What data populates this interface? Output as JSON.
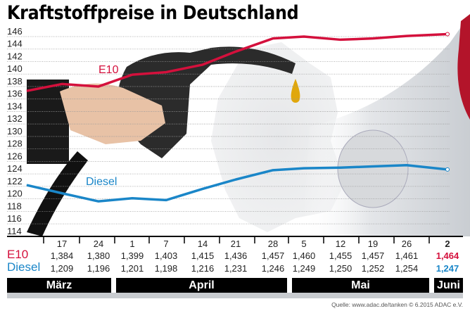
{
  "title": "Kraftstoffpreise in Deutschland",
  "chart_data": {
    "type": "line",
    "title": "Kraftstoffpreise in Deutschland",
    "ylim": [
      114,
      146
    ],
    "yticks": [
      "114",
      "116",
      "118",
      "120",
      "122",
      "124",
      "126",
      "128",
      "130",
      "132",
      "134",
      "136",
      "138",
      "140",
      "142",
      "144",
      "146"
    ],
    "grid": true,
    "categories": [
      "",
      "17",
      "24",
      "1",
      "7",
      "14",
      "21",
      "28",
      "5",
      "12",
      "19",
      "26",
      "2"
    ],
    "months": [
      {
        "label": "März"
      },
      {
        "label": "April"
      },
      {
        "label": "Mai"
      },
      {
        "label": "Juni"
      }
    ],
    "series": [
      {
        "name": "E10",
        "color": "#d4103c",
        "values": [
          137.3,
          138.4,
          138.0,
          139.9,
          140.3,
          141.5,
          143.6,
          145.7,
          146.0,
          145.5,
          145.7,
          146.1,
          146.4
        ],
        "table": [
          "1,384",
          "1,380",
          "1,399",
          "1,403",
          "1,415",
          "1,436",
          "1,457",
          "1,460",
          "1,455",
          "1,457",
          "1,461",
          "1,464"
        ]
      },
      {
        "name": "Diesel",
        "color": "#1a86c8",
        "values": [
          122.2,
          120.9,
          119.6,
          120.1,
          119.8,
          121.6,
          123.1,
          124.6,
          124.9,
          125.0,
          125.2,
          125.4,
          124.7
        ],
        "table": [
          "1,209",
          "1,196",
          "1,201",
          "1,198",
          "1,216",
          "1,231",
          "1,246",
          "1,249",
          "1,250",
          "1,252",
          "1,254",
          "1,247"
        ]
      }
    ]
  },
  "source": "Quelle: www.adac.de/tanken   © 6.2015  ADAC e.V."
}
